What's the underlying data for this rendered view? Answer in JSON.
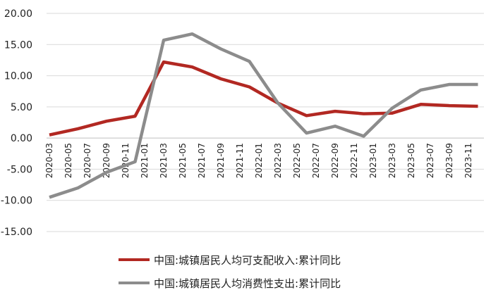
{
  "chart_data": {
    "type": "line",
    "title": "",
    "xlabel": "",
    "ylabel": "",
    "ylim": [
      -15,
      20
    ],
    "yticks": [
      "20.00",
      "15.00",
      "10.00",
      "5.00",
      "0.00",
      "-5.00",
      "-10.00",
      "-15.00"
    ],
    "grid": "horizontal",
    "legend_position": "bottom",
    "categories": [
      "2020-03",
      "2020-05",
      "2020-07",
      "2020-09",
      "2020-11",
      "2021-01",
      "2021-03",
      "2021-05",
      "2021-07",
      "2021-09",
      "2021-11",
      "2022-01",
      "2022-03",
      "2022-05",
      "2022-07",
      "2022-09",
      "2022-11",
      "2023-01",
      "2023-03",
      "2023-05",
      "2023-07",
      "2023-09",
      "2023-11"
    ],
    "x": [
      "2020-03",
      "2020-06",
      "2020-09",
      "2020-12",
      "2021-03",
      "2021-06",
      "2021-09",
      "2021-12",
      "2022-03",
      "2022-06",
      "2022-09",
      "2022-12",
      "2023-03",
      "2023-06",
      "2023-09",
      "2023-12"
    ],
    "series": [
      {
        "name": "中国:城镇居民人均可支配收入:累计同比",
        "color": "#b22822",
        "values": [
          0.5,
          1.5,
          2.7,
          3.5,
          12.2,
          11.4,
          9.5,
          8.2,
          5.6,
          3.6,
          4.3,
          3.9,
          4.0,
          5.4,
          5.2,
          5.1
        ]
      },
      {
        "name": "中国:城镇居民人均消费性支出:累计同比",
        "color": "#8c8c8c",
        "values": [
          -9.5,
          -8.0,
          -5.5,
          -3.8,
          15.7,
          16.7,
          14.3,
          12.3,
          5.6,
          0.8,
          1.9,
          0.3,
          4.8,
          7.7,
          8.6,
          8.6
        ]
      }
    ]
  }
}
